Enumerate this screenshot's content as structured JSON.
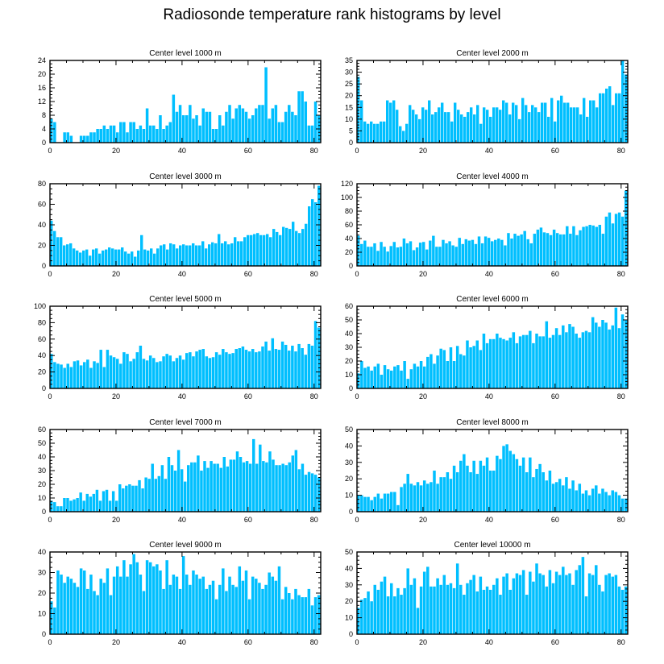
{
  "title": "Radiosonde temperature rank histograms by level",
  "colors": {
    "bar": "#00bfff",
    "bar_edge": "#ffffff",
    "axis": "#000000"
  },
  "chart_data": [
    {
      "type": "bar",
      "title": "Center level 1000 m",
      "xlabel": "",
      "ylabel": "",
      "xlim": [
        0,
        82
      ],
      "ylim": [
        0,
        24
      ],
      "xticks": [
        0,
        20,
        40,
        60,
        80
      ],
      "yticks": [
        0,
        4,
        8,
        12,
        16,
        20,
        24
      ],
      "values": [
        7,
        6,
        0,
        0,
        3,
        3,
        2,
        0,
        0,
        2,
        2,
        2,
        3,
        3,
        4,
        4,
        5,
        4,
        5,
        5,
        3,
        6,
        6,
        3,
        6,
        6,
        4,
        5,
        4,
        10,
        5,
        5,
        4,
        8,
        4,
        5,
        6,
        14,
        9,
        11,
        8,
        8,
        11,
        7,
        8,
        5,
        10,
        9,
        9,
        4,
        4,
        8,
        5,
        9,
        11,
        7,
        10,
        11,
        10,
        9,
        7,
        8,
        10,
        11,
        11,
        22,
        7,
        10,
        11,
        6,
        6,
        9,
        11,
        9,
        8,
        15,
        15,
        12,
        5,
        5,
        12,
        8
      ]
    },
    {
      "type": "bar",
      "title": "Center level 2000 m",
      "xlabel": "",
      "ylabel": "",
      "xlim": [
        0,
        82
      ],
      "ylim": [
        0,
        35
      ],
      "xticks": [
        0,
        20,
        40,
        60,
        80
      ],
      "yticks": [
        0,
        5,
        10,
        15,
        20,
        25,
        30,
        35
      ],
      "values": [
        28,
        18,
        9,
        8,
        9,
        8,
        8,
        9,
        9,
        18,
        17,
        18,
        14,
        7,
        5,
        8,
        16,
        14,
        12,
        10,
        15,
        14,
        18,
        12,
        13,
        15,
        17,
        13,
        13,
        9,
        17,
        14,
        12,
        11,
        13,
        15,
        12,
        16,
        8,
        15,
        14,
        11,
        15,
        15,
        14,
        18,
        17,
        12,
        17,
        16,
        10,
        19,
        16,
        13,
        16,
        15,
        13,
        17,
        17,
        11,
        19,
        9,
        18,
        20,
        17,
        17,
        15,
        15,
        15,
        12,
        19,
        11,
        18,
        18,
        15,
        21,
        21,
        23,
        24,
        16,
        21,
        21,
        35,
        29
      ]
    },
    {
      "type": "bar",
      "title": "Center level 3000 m",
      "xlabel": "",
      "ylabel": "",
      "xlim": [
        0,
        82
      ],
      "ylim": [
        0,
        80
      ],
      "xticks": [
        0,
        20,
        40,
        60,
        80
      ],
      "yticks": [
        0,
        20,
        40,
        60,
        80
      ],
      "values": [
        44,
        34,
        28,
        28,
        20,
        21,
        22,
        17,
        15,
        13,
        15,
        16,
        10,
        16,
        17,
        12,
        15,
        16,
        18,
        17,
        16,
        16,
        18,
        14,
        12,
        14,
        9,
        15,
        30,
        16,
        15,
        17,
        12,
        17,
        20,
        21,
        16,
        22,
        21,
        17,
        20,
        21,
        20,
        20,
        22,
        20,
        20,
        24,
        17,
        21,
        23,
        22,
        31,
        22,
        24,
        21,
        22,
        28,
        24,
        24,
        28,
        30,
        30,
        31,
        32,
        30,
        30,
        31,
        28,
        36,
        33,
        30,
        38,
        37,
        36,
        43,
        34,
        32,
        36,
        41,
        58,
        65,
        62,
        78
      ]
    },
    {
      "type": "bar",
      "title": "Center level 4000 m",
      "xlabel": "",
      "ylabel": "",
      "xlim": [
        0,
        82
      ],
      "ylim": [
        0,
        120
      ],
      "xticks": [
        0,
        20,
        40,
        60,
        80
      ],
      "yticks": [
        0,
        20,
        40,
        60,
        80,
        100,
        120
      ],
      "values": [
        44,
        32,
        37,
        28,
        28,
        33,
        22,
        35,
        28,
        21,
        29,
        35,
        27,
        28,
        40,
        33,
        36,
        23,
        27,
        34,
        35,
        24,
        37,
        44,
        28,
        28,
        38,
        33,
        36,
        30,
        28,
        41,
        32,
        39,
        37,
        38,
        32,
        43,
        33,
        43,
        41,
        36,
        38,
        40,
        38,
        30,
        48,
        40,
        47,
        44,
        46,
        51,
        39,
        33,
        47,
        53,
        56,
        49,
        48,
        45,
        53,
        48,
        46,
        46,
        58,
        47,
        58,
        45,
        52,
        57,
        58,
        60,
        59,
        57,
        60,
        47,
        72,
        78,
        62,
        76,
        78,
        72,
        110
      ]
    },
    {
      "type": "bar",
      "title": "Center level 5000 m",
      "xlabel": "",
      "ylabel": "",
      "xlim": [
        0,
        82
      ],
      "ylim": [
        0,
        100
      ],
      "xticks": [
        0,
        20,
        40,
        60,
        80
      ],
      "yticks": [
        0,
        20,
        40,
        60,
        80,
        100
      ],
      "values": [
        42,
        32,
        30,
        29,
        25,
        30,
        26,
        33,
        34,
        28,
        32,
        35,
        25,
        33,
        31,
        47,
        26,
        47,
        40,
        38,
        36,
        30,
        44,
        42,
        33,
        36,
        44,
        52,
        36,
        34,
        40,
        37,
        32,
        33,
        39,
        42,
        40,
        33,
        37,
        40,
        35,
        43,
        44,
        39,
        45,
        47,
        48,
        39,
        37,
        38,
        44,
        41,
        48,
        44,
        42,
        43,
        48,
        49,
        51,
        47,
        45,
        48,
        44,
        45,
        51,
        57,
        46,
        61,
        48,
        47,
        57,
        53,
        46,
        52,
        45,
        54,
        49,
        41,
        54,
        52,
        82,
        74
      ]
    },
    {
      "type": "bar",
      "title": "Center level 6000 m",
      "xlabel": "",
      "ylabel": "",
      "xlim": [
        0,
        82
      ],
      "ylim": [
        0,
        60
      ],
      "xticks": [
        0,
        20,
        40,
        60,
        80
      ],
      "yticks": [
        0,
        10,
        20,
        30,
        40,
        50,
        60
      ],
      "values": [
        11,
        20,
        15,
        16,
        13,
        16,
        18,
        10,
        17,
        14,
        13,
        16,
        17,
        13,
        20,
        7,
        14,
        18,
        16,
        20,
        16,
        23,
        25,
        18,
        24,
        29,
        28,
        20,
        30,
        20,
        31,
        25,
        24,
        35,
        30,
        31,
        35,
        28,
        40,
        33,
        36,
        36,
        40,
        37,
        36,
        35,
        37,
        41,
        33,
        38,
        39,
        39,
        42,
        33,
        40,
        38,
        38,
        49,
        37,
        39,
        44,
        39,
        46,
        41,
        47,
        45,
        40,
        37,
        41,
        42,
        41,
        52,
        48,
        45,
        50,
        48,
        43,
        46,
        59,
        44,
        54,
        50
      ]
    },
    {
      "type": "bar",
      "title": "Center level 7000 m",
      "xlabel": "",
      "ylabel": "",
      "xlim": [
        0,
        82
      ],
      "ylim": [
        0,
        60
      ],
      "xticks": [
        0,
        20,
        40,
        60,
        80
      ],
      "yticks": [
        0,
        10,
        20,
        30,
        40,
        50,
        60
      ],
      "values": [
        8,
        7,
        4,
        4,
        10,
        10,
        8,
        9,
        10,
        14,
        8,
        13,
        11,
        13,
        16,
        8,
        15,
        16,
        8,
        15,
        8,
        20,
        17,
        19,
        20,
        19,
        19,
        23,
        17,
        25,
        24,
        35,
        24,
        26,
        34,
        24,
        40,
        34,
        30,
        45,
        31,
        22,
        34,
        36,
        36,
        41,
        30,
        37,
        32,
        37,
        35,
        35,
        32,
        40,
        33,
        38,
        38,
        44,
        40,
        36,
        37,
        35,
        53,
        35,
        49,
        37,
        36,
        44,
        38,
        34,
        34,
        35,
        34,
        36,
        41,
        45,
        31,
        35,
        27,
        29,
        28,
        27,
        25
      ]
    },
    {
      "type": "bar",
      "title": "Center level 8000 m",
      "xlabel": "",
      "ylabel": "",
      "xlim": [
        0,
        82
      ],
      "ylim": [
        0,
        50
      ],
      "xticks": [
        0,
        20,
        40,
        60,
        80
      ],
      "yticks": [
        0,
        10,
        20,
        30,
        40,
        50
      ],
      "values": [
        10,
        10,
        9,
        9,
        7,
        9,
        11,
        8,
        11,
        11,
        12,
        12,
        4,
        15,
        17,
        23,
        17,
        16,
        18,
        16,
        19,
        17,
        18,
        25,
        17,
        21,
        21,
        24,
        20,
        28,
        24,
        31,
        35,
        28,
        24,
        31,
        23,
        31,
        28,
        33,
        25,
        25,
        34,
        32,
        40,
        41,
        37,
        35,
        32,
        28,
        33,
        24,
        33,
        21,
        26,
        29,
        24,
        19,
        25,
        17,
        18,
        20,
        16,
        21,
        14,
        19,
        13,
        17,
        11,
        13,
        10,
        14,
        16,
        11,
        14,
        12,
        10,
        13,
        12,
        10,
        8,
        8
      ]
    },
    {
      "type": "bar",
      "title": "Center level 9000 m",
      "xlabel": "",
      "ylabel": "",
      "xlim": [
        0,
        82
      ],
      "ylim": [
        0,
        40
      ],
      "xticks": [
        0,
        20,
        40,
        60,
        80
      ],
      "yticks": [
        0,
        10,
        20,
        30,
        40
      ],
      "values": [
        16,
        13,
        31,
        29,
        25,
        28,
        27,
        25,
        23,
        32,
        31,
        22,
        29,
        21,
        19,
        27,
        25,
        32,
        19,
        28,
        33,
        28,
        36,
        28,
        34,
        39,
        35,
        29,
        21,
        36,
        35,
        33,
        34,
        31,
        22,
        36,
        24,
        29,
        28,
        22,
        38,
        29,
        24,
        31,
        29,
        27,
        28,
        22,
        24,
        26,
        17,
        24,
        32,
        21,
        28,
        24,
        23,
        33,
        26,
        31,
        17,
        28,
        27,
        25,
        22,
        24,
        30,
        28,
        26,
        33,
        17,
        23,
        20,
        17,
        22,
        19,
        18,
        18,
        22,
        14,
        18,
        19
      ]
    },
    {
      "type": "bar",
      "title": "Center level 10000 m",
      "xlabel": "",
      "ylabel": "",
      "xlim": [
        0,
        82
      ],
      "ylim": [
        0,
        50
      ],
      "xticks": [
        0,
        20,
        40,
        60,
        80
      ],
      "yticks": [
        0,
        10,
        20,
        30,
        40,
        50
      ],
      "values": [
        16,
        21,
        22,
        26,
        20,
        30,
        27,
        32,
        35,
        23,
        31,
        23,
        28,
        24,
        28,
        40,
        30,
        34,
        16,
        29,
        38,
        41,
        29,
        29,
        34,
        30,
        36,
        30,
        31,
        28,
        43,
        30,
        24,
        31,
        33,
        36,
        26,
        35,
        27,
        29,
        27,
        30,
        34,
        24,
        35,
        37,
        27,
        34,
        37,
        36,
        39,
        24,
        38,
        32,
        43,
        37,
        36,
        29,
        39,
        31,
        38,
        36,
        41,
        36,
        37,
        30,
        39,
        42,
        47,
        23,
        37,
        36,
        42,
        30,
        26,
        36,
        37,
        35,
        36,
        29,
        27,
        29
      ]
    }
  ]
}
